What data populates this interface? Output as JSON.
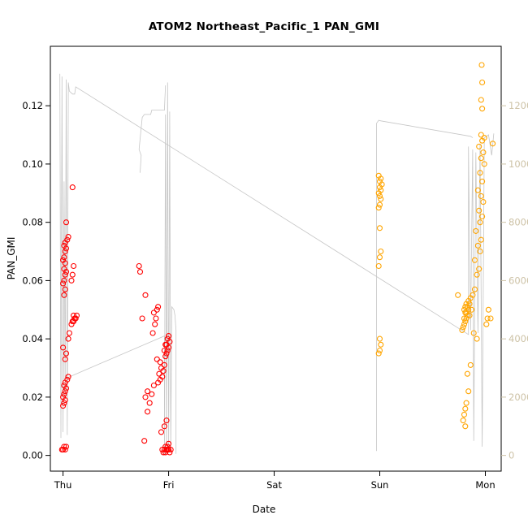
{
  "chart_data": {
    "type": "scatter",
    "title": "ATOM2 Northeast_Pacific_1 PAN_GMI",
    "xlabel": "Date",
    "ylabel": "PAN_GMI",
    "grid": false,
    "legend": "none",
    "x_axis": {
      "range": [
        -0.12,
        4.15
      ],
      "ticks": [
        {
          "label": "Thu",
          "value": 0
        },
        {
          "label": "Fri",
          "value": 1
        },
        {
          "label": "Sat",
          "value": 2
        },
        {
          "label": "Sun",
          "value": 3
        },
        {
          "label": "Mon",
          "value": 4
        }
      ]
    },
    "y_axis": {
      "range": [
        -0.0054,
        0.1404
      ],
      "ticks": [
        {
          "label": "0.00",
          "value": 0.0
        },
        {
          "label": "0.02",
          "value": 0.02
        },
        {
          "label": "0.04",
          "value": 0.04
        },
        {
          "label": "0.06",
          "value": 0.06
        },
        {
          "label": "0.08",
          "value": 0.08
        },
        {
          "label": "0.10",
          "value": 0.1
        },
        {
          "label": "0.12",
          "value": 0.12
        }
      ]
    },
    "y2_axis": {
      "scale_factor": 100000,
      "ticks": [
        {
          "label": "0",
          "value": 0
        },
        {
          "label": "2000",
          "value": 2000
        },
        {
          "label": "4000",
          "value": 4000
        },
        {
          "label": "6000",
          "value": 6000
        },
        {
          "label": "8000",
          "value": 8000
        },
        {
          "label": "10000",
          "value": 10000
        },
        {
          "label": "12000",
          "value": 12000
        }
      ]
    },
    "colors": {
      "frame": "#000000",
      "axis_text": "#000000",
      "axis2_text": "#cdc2a6",
      "line": "#c6c6c6",
      "red_series": "#ff0000",
      "orange_series": "#ffa500"
    },
    "series": [
      {
        "name": "red",
        "color": "#ff0000",
        "points": [
          [
            -0.01,
            0.002
          ],
          [
            0.0,
            0.002
          ],
          [
            0.01,
            0.003
          ],
          [
            0.02,
            0.002
          ],
          [
            0.03,
            0.003
          ],
          [
            0.0,
            0.017
          ],
          [
            0.01,
            0.018
          ],
          [
            0.02,
            0.019
          ],
          [
            0.0,
            0.02
          ],
          [
            0.01,
            0.021
          ],
          [
            0.02,
            0.022
          ],
          [
            0.03,
            0.023
          ],
          [
            0.01,
            0.024
          ],
          [
            0.02,
            0.025
          ],
          [
            0.04,
            0.026
          ],
          [
            0.05,
            0.027
          ],
          [
            0.02,
            0.033
          ],
          [
            0.03,
            0.035
          ],
          [
            0.0,
            0.037
          ],
          [
            0.05,
            0.04
          ],
          [
            0.06,
            0.042
          ],
          [
            0.08,
            0.045
          ],
          [
            0.09,
            0.046
          ],
          [
            0.1,
            0.046
          ],
          [
            0.11,
            0.047
          ],
          [
            0.12,
            0.047
          ],
          [
            0.1,
            0.048
          ],
          [
            0.13,
            0.048
          ],
          [
            0.01,
            0.055
          ],
          [
            0.02,
            0.057
          ],
          [
            0.0,
            0.059
          ],
          [
            0.01,
            0.06
          ],
          [
            0.08,
            0.06
          ],
          [
            0.02,
            0.062
          ],
          [
            0.09,
            0.062
          ],
          [
            0.03,
            0.063
          ],
          [
            0.01,
            0.064
          ],
          [
            0.1,
            0.065
          ],
          [
            0.02,
            0.066
          ],
          [
            0.0,
            0.067
          ],
          [
            0.01,
            0.068
          ],
          [
            0.02,
            0.07
          ],
          [
            0.03,
            0.071
          ],
          [
            0.01,
            0.072
          ],
          [
            0.02,
            0.073
          ],
          [
            0.04,
            0.074
          ],
          [
            0.05,
            0.075
          ],
          [
            0.03,
            0.08
          ],
          [
            0.09,
            0.092
          ],
          [
            0.72,
            0.065
          ],
          [
            0.73,
            0.063
          ],
          [
            0.78,
            0.055
          ],
          [
            0.75,
            0.047
          ],
          [
            0.8,
            0.015
          ],
          [
            0.82,
            0.018
          ],
          [
            0.78,
            0.02
          ],
          [
            0.84,
            0.021
          ],
          [
            0.8,
            0.022
          ],
          [
            0.86,
            0.024
          ],
          [
            0.9,
            0.025
          ],
          [
            0.92,
            0.026
          ],
          [
            0.94,
            0.027
          ],
          [
            0.91,
            0.028
          ],
          [
            0.95,
            0.029
          ],
          [
            0.93,
            0.03
          ],
          [
            0.96,
            0.031
          ],
          [
            0.92,
            0.032
          ],
          [
            0.89,
            0.033
          ],
          [
            0.97,
            0.034
          ],
          [
            0.98,
            0.035
          ],
          [
            0.99,
            0.036
          ],
          [
            0.96,
            0.036
          ],
          [
            1.0,
            0.037
          ],
          [
            0.98,
            0.038
          ],
          [
            0.97,
            0.038
          ],
          [
            1.01,
            0.039
          ],
          [
            0.99,
            0.04
          ],
          [
            1.0,
            0.041
          ],
          [
            0.85,
            0.042
          ],
          [
            0.87,
            0.045
          ],
          [
            0.88,
            0.047
          ],
          [
            0.86,
            0.049
          ],
          [
            0.89,
            0.05
          ],
          [
            0.9,
            0.051
          ],
          [
            0.93,
            0.008
          ],
          [
            0.96,
            0.01
          ],
          [
            0.98,
            0.012
          ],
          [
            0.77,
            0.005
          ],
          [
            0.95,
            0.001
          ],
          [
            0.96,
            0.002
          ],
          [
            0.97,
            0.001
          ],
          [
            0.98,
            0.002
          ],
          [
            0.99,
            0.003
          ],
          [
            1.0,
            0.002
          ],
          [
            1.01,
            0.001
          ],
          [
            0.99,
            0.002
          ],
          [
            0.97,
            0.003
          ],
          [
            1.0,
            0.004
          ],
          [
            1.02,
            0.002
          ],
          [
            0.94,
            0.002
          ]
        ]
      },
      {
        "name": "orange",
        "color": "#ffa500",
        "points": [
          [
            2.99,
            0.035
          ],
          [
            3.0,
            0.036
          ],
          [
            3.01,
            0.038
          ],
          [
            3.0,
            0.04
          ],
          [
            2.99,
            0.065
          ],
          [
            3.0,
            0.068
          ],
          [
            3.01,
            0.07
          ],
          [
            3.0,
            0.078
          ],
          [
            2.99,
            0.085
          ],
          [
            3.0,
            0.086
          ],
          [
            3.01,
            0.088
          ],
          [
            3.0,
            0.089
          ],
          [
            2.99,
            0.09
          ],
          [
            3.01,
            0.091
          ],
          [
            3.0,
            0.092
          ],
          [
            3.02,
            0.093
          ],
          [
            3.0,
            0.094
          ],
          [
            3.01,
            0.095
          ],
          [
            2.99,
            0.096
          ],
          [
            3.8,
            0.045
          ],
          [
            3.81,
            0.046
          ],
          [
            3.82,
            0.047
          ],
          [
            3.8,
            0.047
          ],
          [
            3.83,
            0.048
          ],
          [
            3.81,
            0.049
          ],
          [
            3.82,
            0.049
          ],
          [
            3.84,
            0.05
          ],
          [
            3.8,
            0.05
          ],
          [
            3.83,
            0.051
          ],
          [
            3.81,
            0.051
          ],
          [
            3.85,
            0.052
          ],
          [
            3.82,
            0.052
          ],
          [
            3.84,
            0.053
          ],
          [
            3.86,
            0.054
          ],
          [
            3.79,
            0.044
          ],
          [
            3.78,
            0.043
          ],
          [
            3.88,
            0.055
          ],
          [
            3.9,
            0.057
          ],
          [
            3.87,
            0.05
          ],
          [
            3.85,
            0.048
          ],
          [
            3.79,
            0.012
          ],
          [
            3.8,
            0.014
          ],
          [
            3.81,
            0.016
          ],
          [
            3.82,
            0.018
          ],
          [
            3.84,
            0.022
          ],
          [
            3.83,
            0.028
          ],
          [
            3.86,
            0.031
          ],
          [
            3.81,
            0.01
          ],
          [
            3.92,
            0.062
          ],
          [
            3.94,
            0.064
          ],
          [
            3.9,
            0.067
          ],
          [
            3.95,
            0.07
          ],
          [
            3.93,
            0.072
          ],
          [
            3.96,
            0.074
          ],
          [
            3.91,
            0.077
          ],
          [
            3.95,
            0.08
          ],
          [
            3.97,
            0.082
          ],
          [
            3.94,
            0.084
          ],
          [
            3.98,
            0.087
          ],
          [
            3.96,
            0.089
          ],
          [
            3.93,
            0.091
          ],
          [
            3.97,
            0.094
          ],
          [
            3.95,
            0.097
          ],
          [
            3.99,
            0.1
          ],
          [
            3.96,
            0.102
          ],
          [
            3.98,
            0.104
          ],
          [
            3.94,
            0.106
          ],
          [
            3.97,
            0.108
          ],
          [
            3.99,
            0.109
          ],
          [
            3.96,
            0.11
          ],
          [
            3.92,
            0.04
          ],
          [
            3.89,
            0.042
          ],
          [
            3.74,
            0.055
          ],
          [
            3.97,
            0.119
          ],
          [
            3.96,
            0.122
          ],
          [
            3.97,
            0.128
          ],
          [
            3.965,
            0.134
          ],
          [
            4.02,
            0.047
          ],
          [
            4.03,
            0.05
          ],
          [
            4.01,
            0.045
          ],
          [
            4.07,
            0.107
          ],
          [
            4.05,
            0.047
          ]
        ]
      }
    ],
    "altitude_line": {
      "color": "#c6c6c6",
      "segments": [
        [
          [
            -0.03,
            13100
          ],
          [
            -0.02,
            600
          ],
          [
            -0.01,
            13000
          ],
          [
            0.0,
            800
          ],
          [
            0.01,
            9400
          ],
          [
            0.02,
            2000
          ],
          [
            0.03,
            12900
          ],
          [
            0.04,
            700
          ],
          [
            0.05,
            12800
          ],
          [
            0.06,
            12500
          ],
          [
            0.09,
            12400
          ],
          [
            0.11,
            12400
          ],
          [
            0.12,
            12650
          ],
          [
            3.84,
            4150
          ],
          [
            3.84,
            10600
          ],
          [
            3.86,
            4300
          ],
          [
            3.88,
            10500
          ],
          [
            3.89,
            500
          ],
          [
            3.91,
            10400
          ],
          [
            3.93,
            4200
          ],
          [
            3.95,
            10700
          ],
          [
            3.97,
            300
          ],
          [
            3.99,
            10900
          ],
          [
            4.03,
            11000
          ],
          [
            4.06,
            10300
          ],
          [
            4.08,
            11050
          ]
        ],
        [
          [
            0.03,
            2650
          ],
          [
            0.96,
            4100
          ],
          [
            0.96,
            50
          ],
          [
            0.97,
            11700
          ],
          [
            0.98,
            50
          ],
          [
            0.99,
            12800
          ],
          [
            1.0,
            100
          ],
          [
            1.01,
            11800
          ],
          [
            1.02,
            200
          ],
          [
            1.03,
            5100
          ],
          [
            1.05,
            5000
          ],
          [
            1.06,
            4800
          ],
          [
            1.07,
            4300
          ],
          [
            1.07,
            50
          ]
        ],
        [
          [
            0.73,
            9700
          ],
          [
            0.74,
            10300
          ],
          [
            0.72,
            10500
          ],
          [
            0.75,
            11600
          ],
          [
            0.77,
            11700
          ],
          [
            0.83,
            11700
          ],
          [
            0.84,
            11850
          ],
          [
            0.96,
            11850
          ],
          [
            0.97,
            12700
          ]
        ],
        [
          [
            2.97,
            150
          ],
          [
            2.97,
            11400
          ],
          [
            2.99,
            11500
          ],
          [
            3.01,
            11480
          ],
          [
            3.86,
            10950
          ],
          [
            3.88,
            10900
          ]
        ]
      ]
    }
  }
}
